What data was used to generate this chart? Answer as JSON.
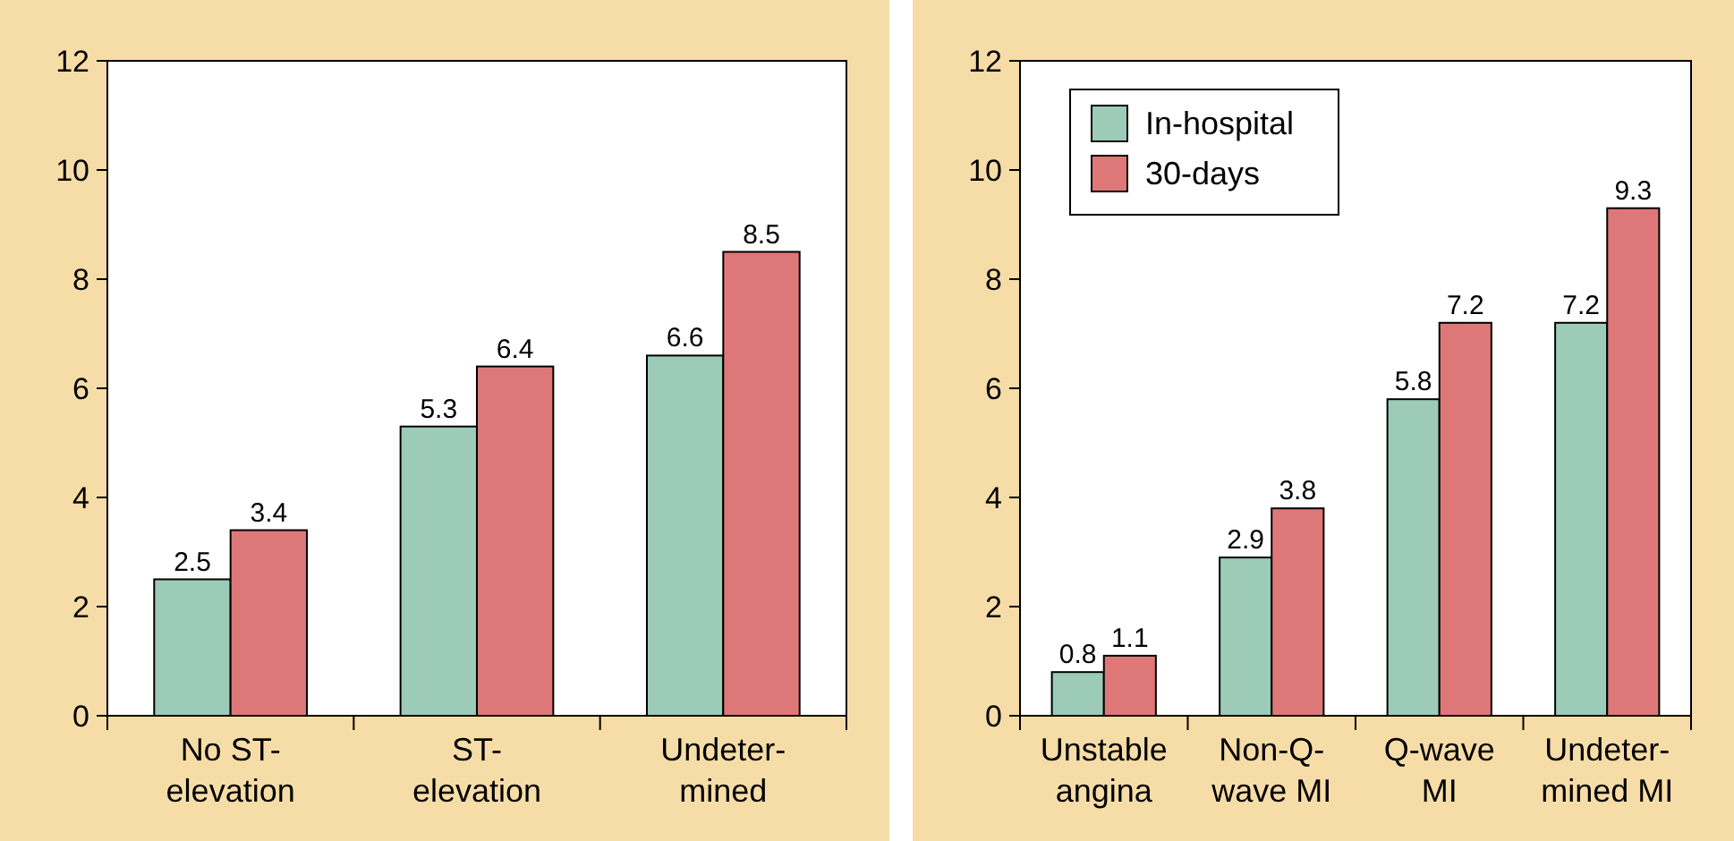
{
  "chart_data": [
    {
      "type": "bar",
      "categories": [
        "No ST-\nelevation",
        "ST-\nelevation",
        "Undeter-\nmined"
      ],
      "series": [
        {
          "color": "#9ccbb8",
          "values": [
            2.5,
            5.3,
            6.6
          ]
        },
        {
          "color": "#de7878",
          "values": [
            3.4,
            6.4,
            8.5
          ]
        }
      ],
      "ylim": [
        0,
        12
      ],
      "yticks": [
        0,
        2,
        4,
        6,
        8,
        10,
        12
      ],
      "data_labels": true,
      "grid": false,
      "legend": false
    },
    {
      "type": "bar",
      "categories": [
        "Unstable\nangina",
        "Non-Q-\nwave MI",
        "Q-wave\nMI",
        "Undeter-\nmined MI"
      ],
      "series": [
        {
          "name": "In-hospital",
          "color": "#9ccbb8",
          "values": [
            0.8,
            2.9,
            5.8,
            7.2
          ]
        },
        {
          "name": "30-days",
          "color": "#de7878",
          "values": [
            1.1,
            3.8,
            7.2,
            9.3
          ]
        }
      ],
      "ylim": [
        0,
        12
      ],
      "yticks": [
        0,
        2,
        4,
        6,
        8,
        10,
        12
      ],
      "data_labels": true,
      "grid": false,
      "legend": "top left"
    }
  ]
}
